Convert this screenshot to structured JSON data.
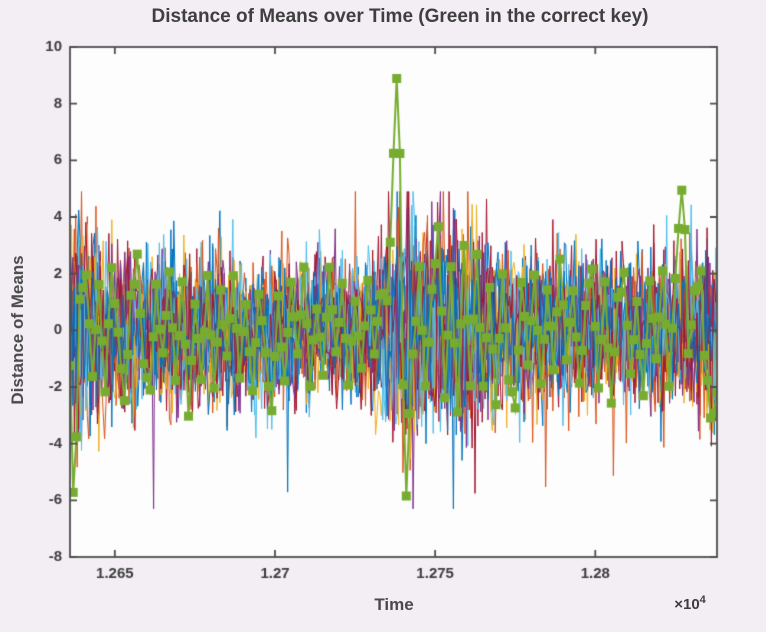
{
  "figure": {
    "background": "#f2eef3",
    "plot_background": "#fdfdfd",
    "frame_color": "#4d4d4d",
    "tick_label_color": "#3d3d3d",
    "title_color": "#3f3f3f"
  },
  "chart_data": {
    "type": "line",
    "title": "Distance of Means over Time (Green in the correct key)",
    "xlabel": "Time",
    "ylabel": "Distance of Means",
    "x_axis_multiplier": {
      "prefix": "×10",
      "exponent": "4"
    },
    "xlim": [
      12636,
      12838
    ],
    "ylim": [
      -8,
      10
    ],
    "xtick_values": [
      12650,
      12700,
      12750,
      12800
    ],
    "xtick_labels": [
      "1.265",
      "1.27",
      "1.275",
      "1.28"
    ],
    "ytick_values": [
      -8,
      -6,
      -4,
      -2,
      0,
      2,
      4,
      6,
      8,
      10
    ],
    "ytick_labels": [
      "-8",
      "-6",
      "-4",
      "-2",
      "0",
      "2",
      "4",
      "6",
      "8",
      "10"
    ],
    "grid": false,
    "legend": null,
    "noise_series": {
      "description": "Many overlapping noisy traces (wrong key guesses) oscillating mostly within ±2, larger excursions to about +4.5 and -6 near x=1.274×10⁴ and at the left edge",
      "count": 14,
      "colors": [
        "#A2142F",
        "#0072BD",
        "#D95319",
        "#EDB120",
        "#7E2F8E",
        "#4DBEEE"
      ],
      "amplitude_envelope": [
        [
          12636,
          2.3
        ],
        [
          12642,
          1.8
        ],
        [
          12650,
          1.4
        ],
        [
          12665,
          1.3
        ],
        [
          12680,
          1.35
        ],
        [
          12695,
          1.3
        ],
        [
          12710,
          1.25
        ],
        [
          12725,
          1.3
        ],
        [
          12736,
          1.7
        ],
        [
          12741,
          2.3
        ],
        [
          12748,
          2.1
        ],
        [
          12755,
          2.1
        ],
        [
          12762,
          1.9
        ],
        [
          12770,
          1.5
        ],
        [
          12780,
          1.35
        ],
        [
          12790,
          1.3
        ],
        [
          12800,
          1.25
        ],
        [
          12810,
          1.3
        ],
        [
          12820,
          1.4
        ],
        [
          12828,
          1.6
        ],
        [
          12838,
          1.5
        ]
      ]
    },
    "series": [
      {
        "name": "correct key (green)",
        "color": "#77AC30",
        "marker": "square",
        "notable_features": "peak 9 at 1.2738e4, dip -6 at 1.2741e4, dip -5.5 at left edge, peak 5 at 1.2827e4, dip -3 at right edge",
        "keypoints": [
          [
            12636,
            -1
          ],
          [
            12637,
            -5.5
          ],
          [
            12638,
            -4
          ],
          [
            12639,
            1
          ],
          [
            12641,
            2
          ],
          [
            12643,
            -1.5
          ],
          [
            12645,
            1.5
          ],
          [
            12647,
            -2
          ],
          [
            12649,
            2.2
          ],
          [
            12651,
            0
          ],
          [
            12653,
            -2.5
          ],
          [
            12655,
            1
          ],
          [
            12657,
            2.5
          ],
          [
            12659,
            -1
          ],
          [
            12661,
            -2
          ],
          [
            12663,
            1.5
          ],
          [
            12665,
            -1
          ],
          [
            12667,
            2
          ],
          [
            12669,
            -2
          ],
          [
            12671,
            1.5
          ],
          [
            12673,
            -2.8
          ],
          [
            12675,
            1
          ],
          [
            12677,
            -1.5
          ],
          [
            12679,
            1.8
          ],
          [
            12681,
            -2
          ],
          [
            12683,
            1.2
          ],
          [
            12685,
            -1
          ],
          [
            12687,
            2
          ],
          [
            12689,
            -1.5
          ],
          [
            12691,
            1
          ],
          [
            12693,
            -2.2
          ],
          [
            12695,
            1.5
          ],
          [
            12697,
            -1
          ],
          [
            12699,
            -3
          ],
          [
            12701,
            1
          ],
          [
            12703,
            -1.8
          ],
          [
            12705,
            1.5
          ],
          [
            12707,
            -1
          ],
          [
            12709,
            2
          ],
          [
            12711,
            -2
          ],
          [
            12713,
            1
          ],
          [
            12715,
            -1.5
          ],
          [
            12717,
            2.2
          ],
          [
            12719,
            -1
          ],
          [
            12721,
            1.5
          ],
          [
            12723,
            -2
          ],
          [
            12725,
            1
          ],
          [
            12727,
            -1.2
          ],
          [
            12729,
            2
          ],
          [
            12731,
            -1
          ],
          [
            12733,
            1.5
          ],
          [
            12735,
            1
          ],
          [
            12736,
            3
          ],
          [
            12737,
            6
          ],
          [
            12738,
            9
          ],
          [
            12739,
            6
          ],
          [
            12740,
            -2
          ],
          [
            12741,
            -6
          ],
          [
            12742,
            -3
          ],
          [
            12743,
            -1
          ],
          [
            12745,
            2
          ],
          [
            12747,
            -2
          ],
          [
            12749,
            1.5
          ],
          [
            12751,
            3.5
          ],
          [
            12753,
            -2.5
          ],
          [
            12755,
            2
          ],
          [
            12757,
            -3
          ],
          [
            12759,
            3
          ],
          [
            12761,
            -2
          ],
          [
            12763,
            2.5
          ],
          [
            12765,
            -2
          ],
          [
            12767,
            1.5
          ],
          [
            12769,
            -2.5
          ],
          [
            12771,
            2
          ],
          [
            12773,
            -1.5
          ],
          [
            12775,
            -2.5
          ],
          [
            12777,
            1.5
          ],
          [
            12779,
            -1
          ],
          [
            12781,
            2
          ],
          [
            12783,
            -2
          ],
          [
            12785,
            1.5
          ],
          [
            12787,
            -1.5
          ],
          [
            12789,
            2.5
          ],
          [
            12791,
            -1
          ],
          [
            12793,
            1.5
          ],
          [
            12795,
            -2
          ],
          [
            12797,
            1
          ],
          [
            12799,
            2
          ],
          [
            12801,
            -2
          ],
          [
            12803,
            1.5
          ],
          [
            12805,
            -2.5
          ],
          [
            12807,
            1
          ],
          [
            12809,
            1.8
          ],
          [
            12811,
            -1.5
          ],
          [
            12813,
            1
          ],
          [
            12815,
            -2.5
          ],
          [
            12817,
            1.5
          ],
          [
            12819,
            -1
          ],
          [
            12821,
            2
          ],
          [
            12823,
            -2
          ],
          [
            12825,
            2
          ],
          [
            12826,
            3.5
          ],
          [
            12827,
            5
          ],
          [
            12828,
            3.5
          ],
          [
            12829,
            -1
          ],
          [
            12831,
            1.5
          ],
          [
            12833,
            2
          ],
          [
            12834,
            -1
          ],
          [
            12836,
            -3
          ],
          [
            12837,
            -2.8
          ],
          [
            12838,
            -2
          ]
        ]
      }
    ]
  }
}
